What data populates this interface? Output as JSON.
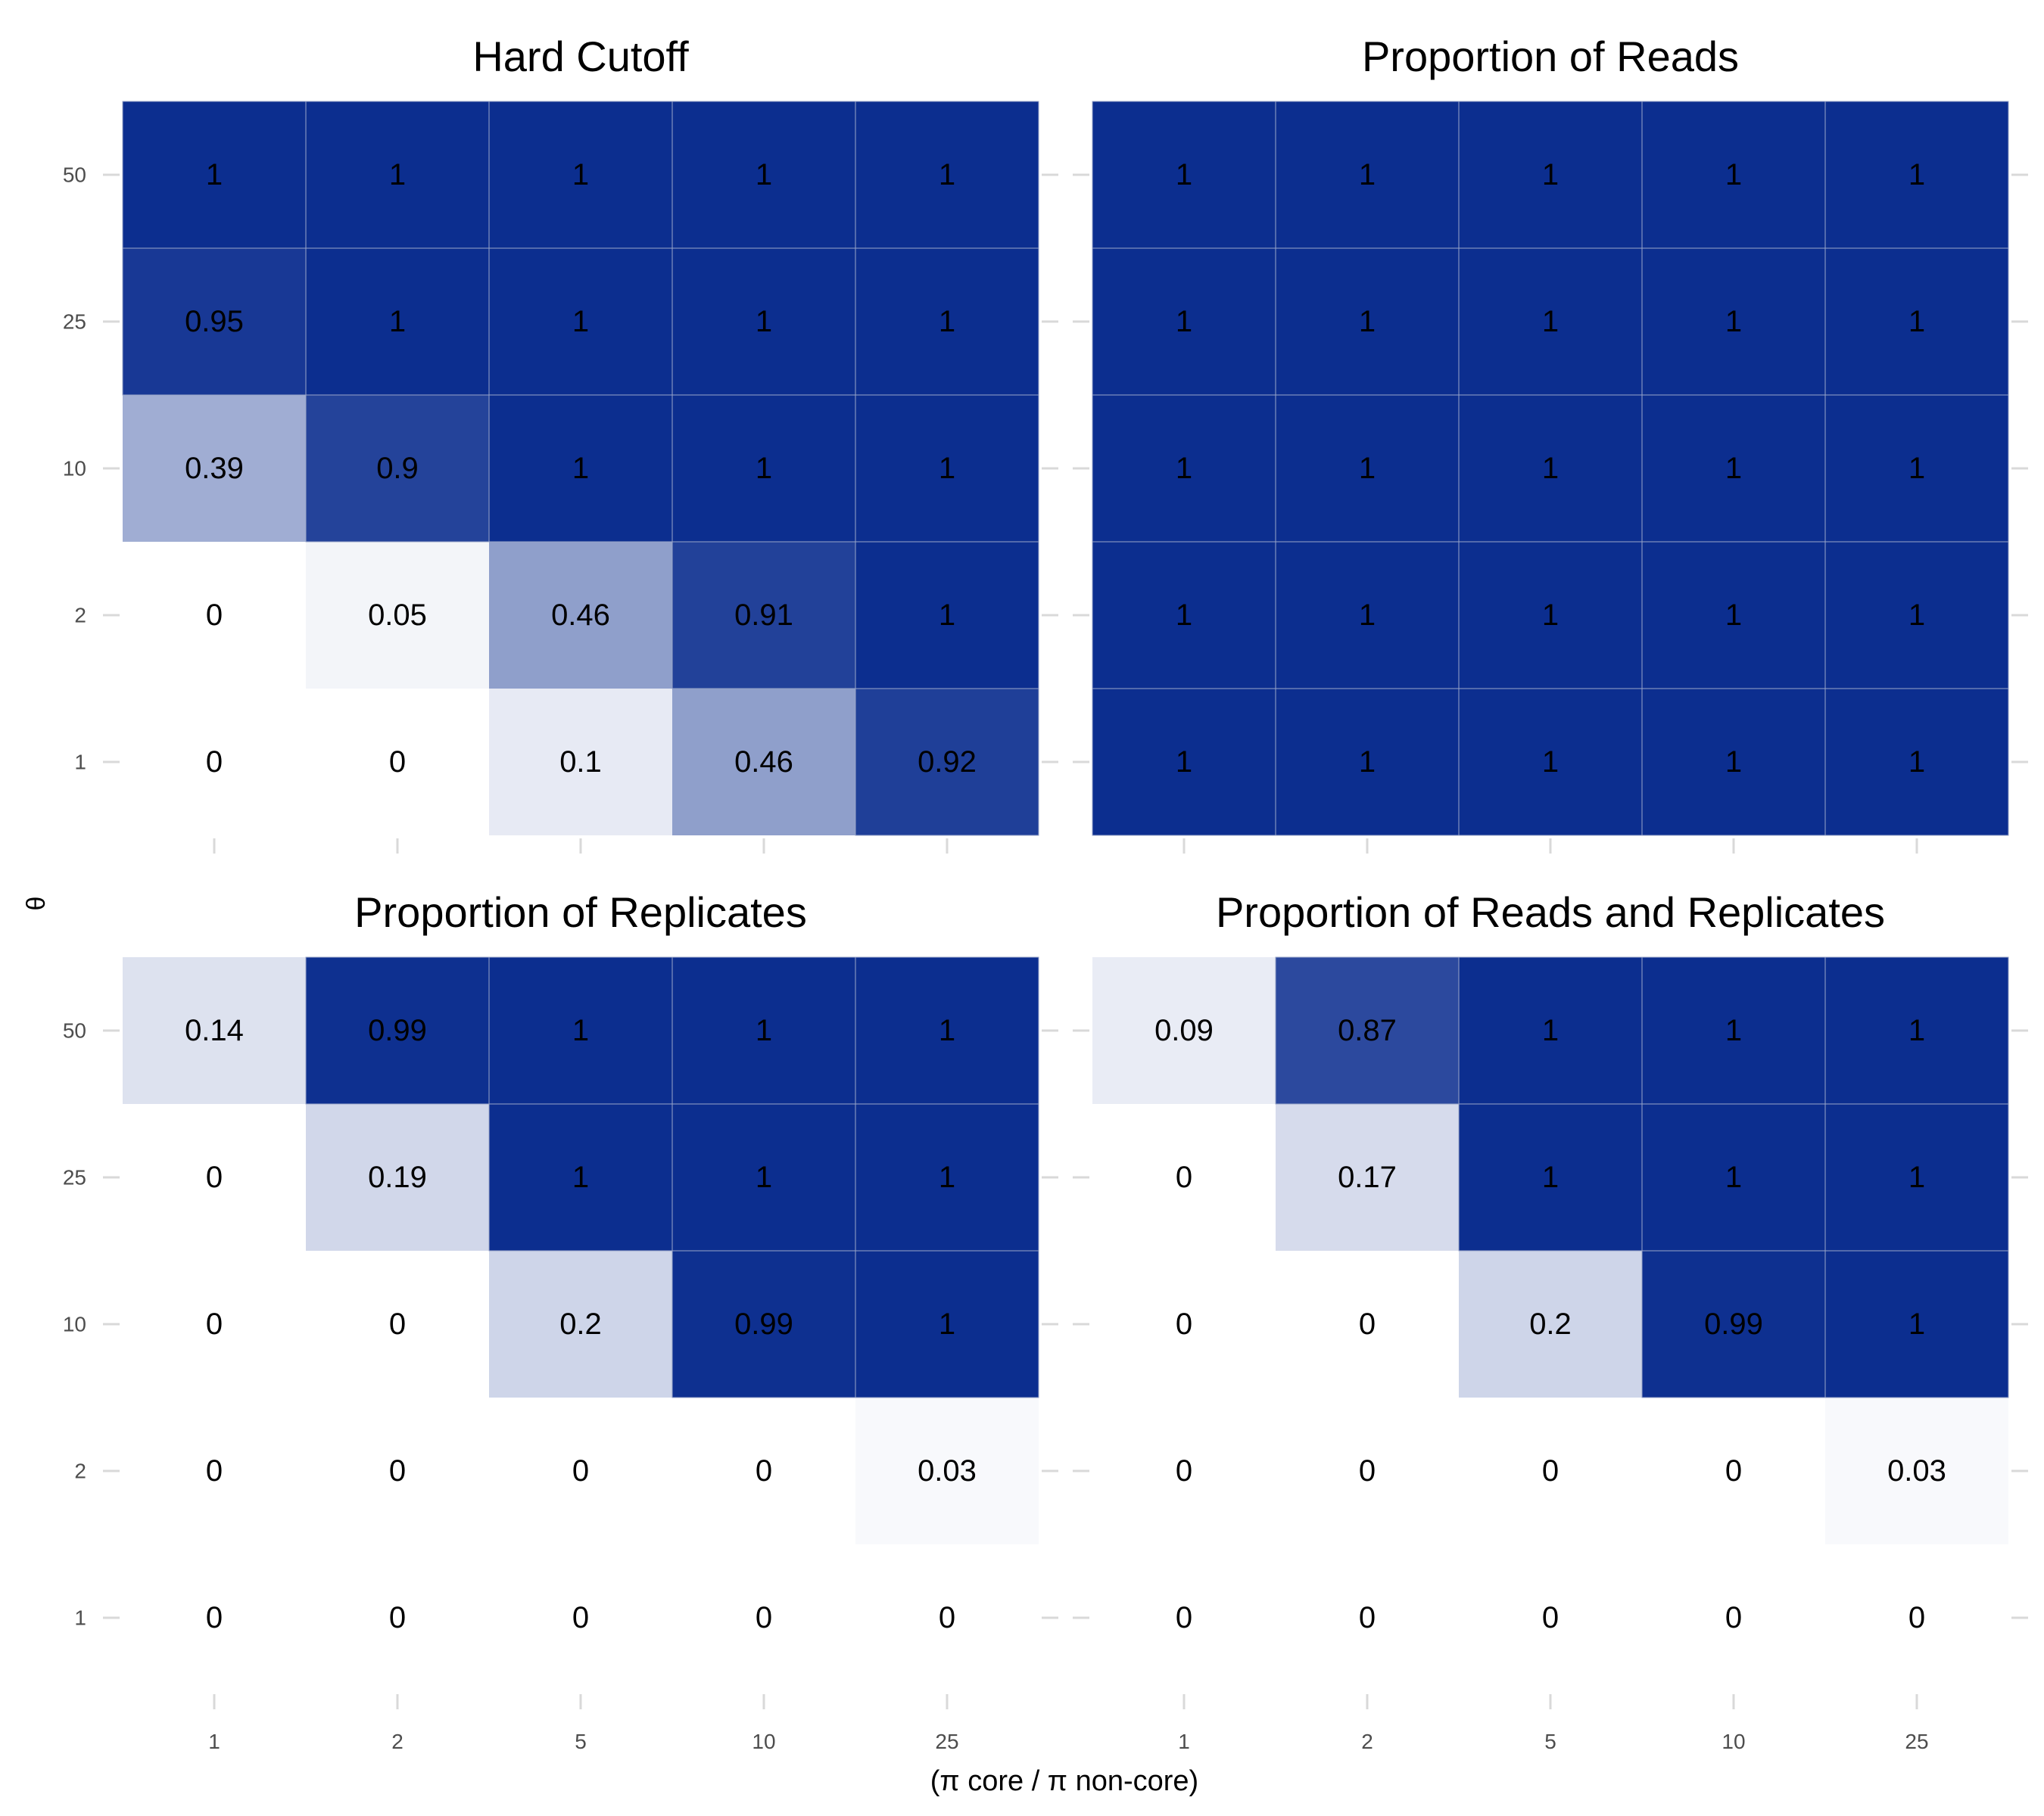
{
  "figure": {
    "ylabel": "θ",
    "xlabel": "(π core / π non-core)"
  },
  "chart_data": [
    {
      "type": "heatmap",
      "title": "Hard Cutoff",
      "x_categories": [
        "1",
        "2",
        "5",
        "10",
        "25"
      ],
      "y_categories": [
        "1",
        "2",
        "10",
        "25",
        "50"
      ],
      "values": [
        [
          0,
          0,
          0.1,
          0.46,
          0.92
        ],
        [
          0,
          0.05,
          0.46,
          0.91,
          1
        ],
        [
          0.39,
          0.9,
          1,
          1,
          1
        ],
        [
          0.95,
          1,
          1,
          1,
          1
        ],
        [
          1,
          1,
          1,
          1,
          1
        ]
      ],
      "value_labels": [
        [
          "0",
          "0",
          "0.1",
          "0.46",
          "0.92"
        ],
        [
          "0",
          "0.05",
          "0.46",
          "0.91",
          "1"
        ],
        [
          "0.39",
          "0.9",
          "1",
          "1",
          "1"
        ],
        [
          "0.95",
          "1",
          "1",
          "1",
          "1"
        ],
        [
          "1",
          "1",
          "1",
          "1",
          "1"
        ]
      ]
    },
    {
      "type": "heatmap",
      "title": "Proportion of Reads",
      "x_categories": [
        "1",
        "2",
        "5",
        "10",
        "25"
      ],
      "y_categories": [
        "1",
        "2",
        "10",
        "25",
        "50"
      ],
      "values": [
        [
          1,
          1,
          1,
          1,
          1
        ],
        [
          1,
          1,
          1,
          1,
          1
        ],
        [
          1,
          1,
          1,
          1,
          1
        ],
        [
          1,
          1,
          1,
          1,
          1
        ],
        [
          1,
          1,
          1,
          1,
          1
        ]
      ],
      "value_labels": [
        [
          "1",
          "1",
          "1",
          "1",
          "1"
        ],
        [
          "1",
          "1",
          "1",
          "1",
          "1"
        ],
        [
          "1",
          "1",
          "1",
          "1",
          "1"
        ],
        [
          "1",
          "1",
          "1",
          "1",
          "1"
        ],
        [
          "1",
          "1",
          "1",
          "1",
          "1"
        ]
      ]
    },
    {
      "type": "heatmap",
      "title": "Proportion of Replicates",
      "x_categories": [
        "1",
        "2",
        "5",
        "10",
        "25"
      ],
      "y_categories": [
        "1",
        "2",
        "10",
        "25",
        "50"
      ],
      "values": [
        [
          0,
          0,
          0,
          0,
          0
        ],
        [
          0,
          0,
          0,
          0,
          0.03
        ],
        [
          0,
          0,
          0.2,
          0.99,
          1
        ],
        [
          0,
          0.19,
          1,
          1,
          1
        ],
        [
          0.14,
          0.99,
          1,
          1,
          1
        ]
      ],
      "value_labels": [
        [
          "0",
          "0",
          "0",
          "0",
          "0"
        ],
        [
          "0",
          "0",
          "0",
          "0",
          "0.03"
        ],
        [
          "0",
          "0",
          "0.2",
          "0.99",
          "1"
        ],
        [
          "0",
          "0.19",
          "1",
          "1",
          "1"
        ],
        [
          "0.14",
          "0.99",
          "1",
          "1",
          "1"
        ]
      ]
    },
    {
      "type": "heatmap",
      "title": "Proportion of Reads and Replicates",
      "x_categories": [
        "1",
        "2",
        "5",
        "10",
        "25"
      ],
      "y_categories": [
        "1",
        "2",
        "10",
        "25",
        "50"
      ],
      "values": [
        [
          0,
          0,
          0,
          0,
          0
        ],
        [
          0,
          0,
          0,
          0,
          0.03
        ],
        [
          0,
          0,
          0.2,
          0.99,
          1
        ],
        [
          0,
          0.17,
          1,
          1,
          1
        ],
        [
          0.09,
          0.87,
          1,
          1,
          1
        ]
      ],
      "value_labels": [
        [
          "0",
          "0",
          "0",
          "0",
          "0"
        ],
        [
          "0",
          "0",
          "0",
          "0",
          "0.03"
        ],
        [
          "0",
          "0",
          "0.2",
          "0.99",
          "1"
        ],
        [
          "0",
          "0.17",
          "1",
          "1",
          "1"
        ],
        [
          "0.09",
          "0.87",
          "1",
          "1",
          "1"
        ]
      ]
    }
  ],
  "colors": {
    "low": "#ffffff",
    "high": "#0c2e8f",
    "tick_label": "#4d4d4d",
    "tick_mark": "#d9d9d9",
    "cell_border": "#9aa6c8"
  }
}
